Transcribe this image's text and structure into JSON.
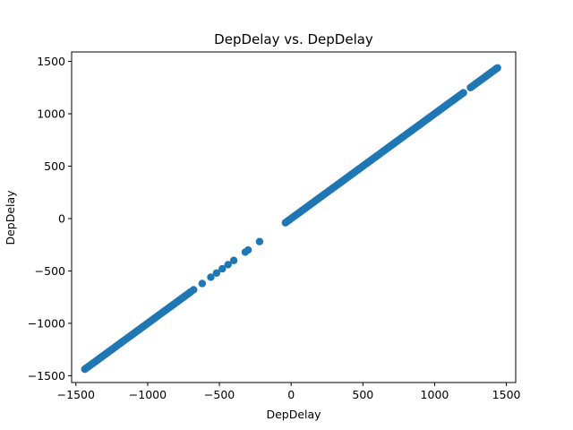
{
  "chart_data": {
    "type": "scatter",
    "title": "DepDelay vs. DepDelay",
    "xlabel": "DepDelay",
    "ylabel": "DepDelay",
    "xlim": [
      -1530,
      1565
    ],
    "ylim": [
      -1565,
      1590
    ],
    "xticks": [
      -1500,
      -1000,
      -500,
      0,
      500,
      1000,
      1500
    ],
    "yticks": [
      -1500,
      -1000,
      -500,
      0,
      500,
      1000,
      1500
    ],
    "xtick_labels": [
      "−1500",
      "−1000",
      "−500",
      "0",
      "500",
      "1000",
      "1500"
    ],
    "ytick_labels": [
      "−1500",
      "−1000",
      "−500",
      "0",
      "500",
      "1000",
      "1500"
    ],
    "grid": false,
    "series": [
      {
        "color": "#1f77b4",
        "segments": [
          [
            -1438,
            -700
          ],
          [
            -40,
            1200
          ],
          [
            1250,
            1438
          ]
        ],
        "isolated": [
          -680,
          -620,
          -560,
          -520,
          -480,
          -440,
          -400,
          -320,
          -300,
          -220
        ]
      }
    ]
  }
}
